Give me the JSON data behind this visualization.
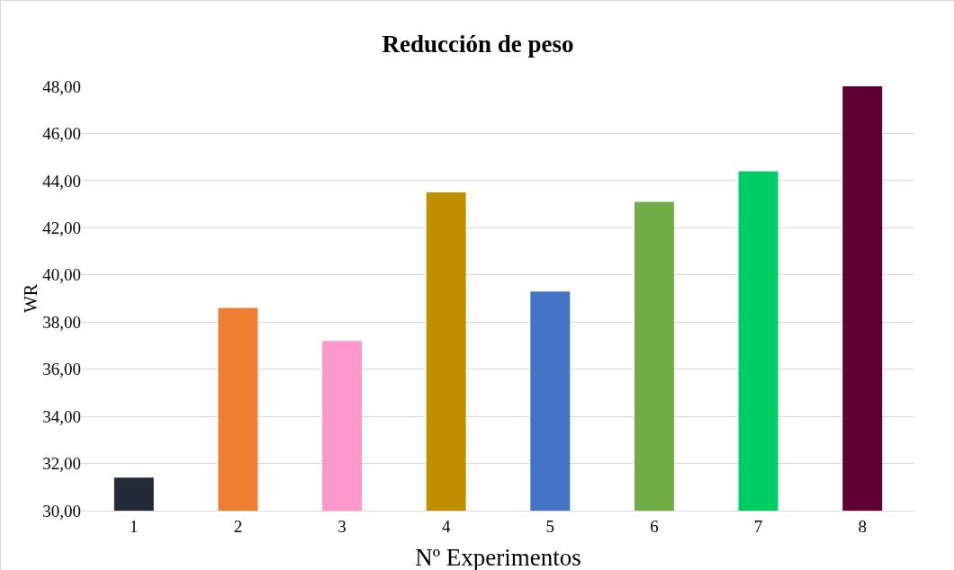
{
  "chart_data": {
    "type": "bar",
    "title": "Reducción de peso",
    "xlabel": "Nº Experimentos",
    "ylabel": "WR",
    "categories": [
      "1",
      "2",
      "3",
      "4",
      "5",
      "6",
      "7",
      "8"
    ],
    "values": [
      31.4,
      38.6,
      37.2,
      43.5,
      39.3,
      43.1,
      44.4,
      48.0
    ],
    "colors": [
      "#222a35",
      "#ed7d31",
      "#ff99cc",
      "#bf8f00",
      "#4472c4",
      "#70ad47",
      "#00cc66",
      "#600030"
    ],
    "ylim": [
      30,
      48
    ],
    "yticks": [
      {
        "value": 30,
        "label": "30,00"
      },
      {
        "value": 32,
        "label": "32,00"
      },
      {
        "value": 34,
        "label": "34,00"
      },
      {
        "value": 36,
        "label": "36,00"
      },
      {
        "value": 38,
        "label": "38,00"
      },
      {
        "value": 40,
        "label": "40,00"
      },
      {
        "value": 42,
        "label": "42,00"
      },
      {
        "value": 44,
        "label": "44,00"
      },
      {
        "value": 46,
        "label": "46,00"
      },
      {
        "value": 48,
        "label": "48,00"
      }
    ],
    "grid": "y"
  }
}
